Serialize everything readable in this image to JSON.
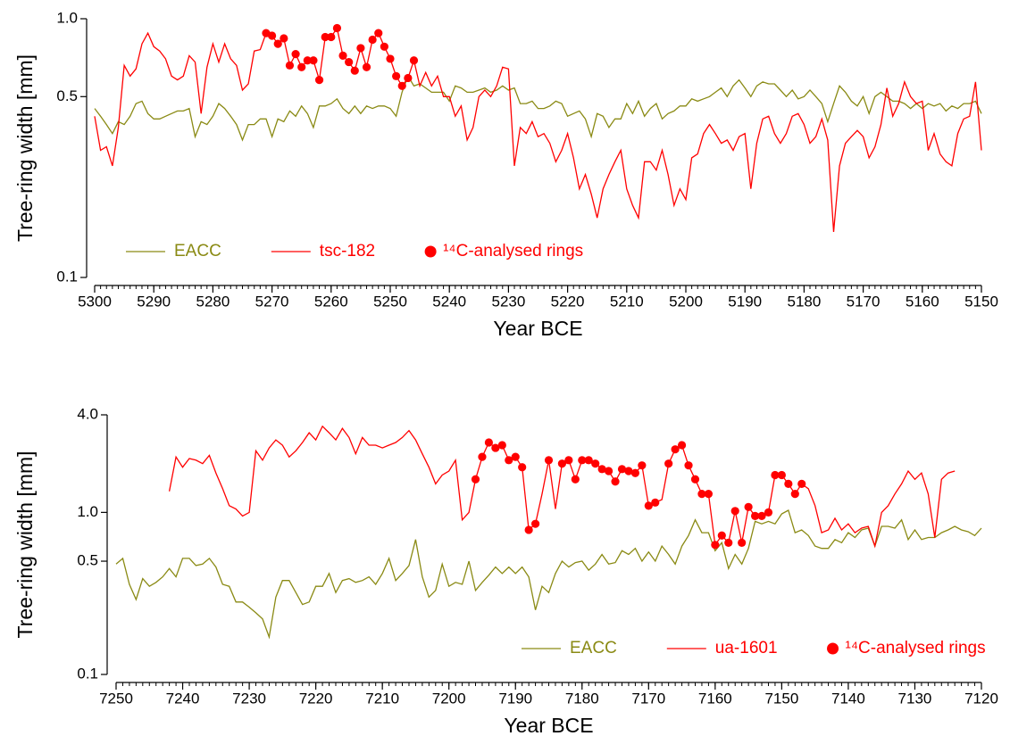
{
  "chart_data": [
    {
      "type": "line",
      "xlabel": "Year BCE",
      "ylabel": "Tree-ring width [mm]",
      "log_y": true,
      "legend": "lower left",
      "xlim": [
        5300,
        5150
      ],
      "xticks": [
        5300,
        5290,
        5280,
        5270,
        5260,
        5250,
        5240,
        5230,
        5220,
        5210,
        5200,
        5190,
        5180,
        5170,
        5160,
        5150
      ],
      "ylim": [
        0.1,
        1
      ],
      "yticks": [
        0.1,
        0.5,
        {
          "value": 1,
          "label": "1.0"
        }
      ],
      "x": [
        5300,
        5299,
        5298,
        5297,
        5296,
        5295,
        5294,
        5293,
        5292,
        5291,
        5290,
        5289,
        5288,
        5287,
        5286,
        5285,
        5284,
        5283,
        5282,
        5281,
        5280,
        5279,
        5278,
        5277,
        5276,
        5275,
        5274,
        5273,
        5272,
        5271,
        5270,
        5269,
        5268,
        5267,
        5266,
        5265,
        5264,
        5263,
        5262,
        5261,
        5260,
        5259,
        5258,
        5257,
        5256,
        5255,
        5254,
        5253,
        5252,
        5251,
        5250,
        5249,
        5248,
        5247,
        5246,
        5245,
        5244,
        5243,
        5242,
        5241,
        5240,
        5239,
        5238,
        5237,
        5236,
        5235,
        5234,
        5233,
        5232,
        5231,
        5230,
        5229,
        5228,
        5227,
        5226,
        5225,
        5224,
        5223,
        5222,
        5221,
        5220,
        5219,
        5218,
        5217,
        5216,
        5215,
        5214,
        5213,
        5212,
        5211,
        5210,
        5209,
        5208,
        5207,
        5206,
        5205,
        5204,
        5203,
        5202,
        5201,
        5200,
        5199,
        5198,
        5197,
        5196,
        5195,
        5194,
        5193,
        5192,
        5191,
        5190,
        5189,
        5188,
        5187,
        5186,
        5185,
        5184,
        5183,
        5182,
        5181,
        5180,
        5179,
        5178,
        5177,
        5176,
        5175,
        5174,
        5173,
        5172,
        5171,
        5170,
        5169,
        5168,
        5167,
        5166,
        5165,
        5164,
        5163,
        5162,
        5161,
        5160,
        5159,
        5158,
        5157,
        5156,
        5155,
        5154,
        5153,
        5152,
        5151,
        5150
      ],
      "series": [
        {
          "name": "EACC",
          "color": "#8a8a14",
          "mode": "lines",
          "values": [
            0.45,
            0.42,
            0.39,
            0.36,
            0.4,
            0.39,
            0.42,
            0.47,
            0.48,
            0.43,
            0.41,
            0.41,
            0.42,
            0.43,
            0.44,
            0.44,
            0.45,
            0.35,
            0.4,
            0.39,
            0.42,
            0.47,
            0.45,
            0.42,
            0.39,
            0.34,
            0.39,
            0.39,
            0.41,
            0.41,
            0.35,
            0.41,
            0.4,
            0.44,
            0.42,
            0.46,
            0.43,
            0.38,
            0.46,
            0.46,
            0.47,
            0.49,
            0.45,
            0.43,
            0.46,
            0.43,
            0.46,
            0.45,
            0.46,
            0.46,
            0.45,
            0.42,
            0.52,
            0.6,
            0.55,
            0.56,
            0.54,
            0.52,
            0.52,
            0.52,
            0.48,
            0.55,
            0.54,
            0.52,
            0.52,
            0.53,
            0.54,
            0.52,
            0.53,
            0.55,
            0.53,
            0.54,
            0.47,
            0.47,
            0.48,
            0.45,
            0.45,
            0.46,
            0.48,
            0.47,
            0.42,
            0.43,
            0.44,
            0.41,
            0.35,
            0.43,
            0.42,
            0.38,
            0.41,
            0.41,
            0.47,
            0.43,
            0.48,
            0.42,
            0.45,
            0.47,
            0.41,
            0.43,
            0.44,
            0.46,
            0.46,
            0.49,
            0.48,
            0.49,
            0.5,
            0.52,
            0.54,
            0.5,
            0.55,
            0.58,
            0.54,
            0.5,
            0.55,
            0.57,
            0.56,
            0.56,
            0.53,
            0.5,
            0.53,
            0.49,
            0.5,
            0.53,
            0.5,
            0.47,
            0.4,
            0.47,
            0.55,
            0.52,
            0.48,
            0.46,
            0.5,
            0.43,
            0.5,
            0.52,
            0.5,
            0.48,
            0.48,
            0.47,
            0.45,
            0.47,
            0.45,
            0.47,
            0.46,
            0.47,
            0.44,
            0.46,
            0.45,
            0.47,
            0.47,
            0.48,
            0.43
          ]
        },
        {
          "name": "tsc-182",
          "color": "#ff0000",
          "mode": "lines",
          "values": [
            0.42,
            0.31,
            0.32,
            0.27,
            0.38,
            0.66,
            0.6,
            0.64,
            0.8,
            0.88,
            0.78,
            0.75,
            0.7,
            0.6,
            0.58,
            0.6,
            0.72,
            0.68,
            0.43,
            0.65,
            0.8,
            0.68,
            0.8,
            0.7,
            0.66,
            0.53,
            0.56,
            0.75,
            0.76,
            0.88,
            0.86,
            0.8,
            0.84,
            0.66,
            0.73,
            0.65,
            0.69,
            0.69,
            0.58,
            0.85,
            0.85,
            0.92,
            0.72,
            0.68,
            0.63,
            0.77,
            0.65,
            0.83,
            0.88,
            0.78,
            0.7,
            0.6,
            0.55,
            0.59,
            0.69,
            0.55,
            0.62,
            0.55,
            0.6,
            0.5,
            0.5,
            0.42,
            0.46,
            0.34,
            0.38,
            0.5,
            0.53,
            0.5,
            0.55,
            0.65,
            0.64,
            0.27,
            0.38,
            0.36,
            0.4,
            0.35,
            0.36,
            0.33,
            0.28,
            0.31,
            0.36,
            0.29,
            0.22,
            0.25,
            0.21,
            0.17,
            0.22,
            0.25,
            0.28,
            0.31,
            0.22,
            0.19,
            0.17,
            0.28,
            0.28,
            0.26,
            0.31,
            0.25,
            0.19,
            0.22,
            0.2,
            0.29,
            0.3,
            0.36,
            0.39,
            0.36,
            0.33,
            0.34,
            0.31,
            0.35,
            0.36,
            0.22,
            0.33,
            0.41,
            0.42,
            0.36,
            0.33,
            0.36,
            0.42,
            0.43,
            0.39,
            0.33,
            0.35,
            0.41,
            0.34,
            0.15,
            0.27,
            0.33,
            0.35,
            0.37,
            0.35,
            0.29,
            0.32,
            0.39,
            0.54,
            0.42,
            0.47,
            0.57,
            0.5,
            0.47,
            0.48,
            0.31,
            0.36,
            0.3,
            0.28,
            0.27,
            0.36,
            0.41,
            0.42,
            0.57,
            0.31
          ]
        },
        {
          "name": "¹⁴C-analysed rings",
          "color": "#ff0000",
          "mode": "markers",
          "x": [
            5271,
            5270,
            5269,
            5268,
            5267,
            5266,
            5265,
            5264,
            5263,
            5262,
            5261,
            5260,
            5259,
            5258,
            5257,
            5256,
            5255,
            5254,
            5253,
            5252,
            5251,
            5250,
            5249,
            5248,
            5247,
            5246
          ],
          "values": [
            0.88,
            0.86,
            0.8,
            0.84,
            0.66,
            0.73,
            0.65,
            0.69,
            0.69,
            0.58,
            0.85,
            0.85,
            0.92,
            0.72,
            0.68,
            0.63,
            0.77,
            0.65,
            0.83,
            0.88,
            0.78,
            0.7,
            0.6,
            0.55,
            0.59,
            0.69
          ]
        }
      ]
    },
    {
      "type": "line",
      "xlabel": "Year BCE",
      "ylabel": "Tree-ring width [mm]",
      "log_y": true,
      "legend": "lower right",
      "xlim": [
        7250,
        7120
      ],
      "xticks": [
        7250,
        7240,
        7230,
        7220,
        7210,
        7200,
        7190,
        7180,
        7170,
        7160,
        7150,
        7140,
        7130,
        7120
      ],
      "ylim": [
        0.1,
        4
      ],
      "yticks": [
        0.1,
        0.5,
        {
          "value": 1,
          "label": "1.0"
        },
        {
          "value": 4,
          "label": "4.0"
        }
      ],
      "x": [
        7250,
        7249,
        7248,
        7247,
        7246,
        7245,
        7244,
        7243,
        7242,
        7241,
        7240,
        7239,
        7238,
        7237,
        7236,
        7235,
        7234,
        7233,
        7232,
        7231,
        7230,
        7229,
        7228,
        7227,
        7226,
        7225,
        7224,
        7223,
        7222,
        7221,
        7220,
        7219,
        7218,
        7217,
        7216,
        7215,
        7214,
        7213,
        7212,
        7211,
        7210,
        7209,
        7208,
        7207,
        7206,
        7205,
        7204,
        7203,
        7202,
        7201,
        7200,
        7199,
        7198,
        7197,
        7196,
        7195,
        7194,
        7193,
        7192,
        7191,
        7190,
        7189,
        7188,
        7187,
        7186,
        7185,
        7184,
        7183,
        7182,
        7181,
        7180,
        7179,
        7178,
        7177,
        7176,
        7175,
        7174,
        7173,
        7172,
        7171,
        7170,
        7169,
        7168,
        7167,
        7166,
        7165,
        7164,
        7163,
        7162,
        7161,
        7160,
        7159,
        7158,
        7157,
        7156,
        7155,
        7154,
        7153,
        7152,
        7151,
        7150,
        7149,
        7148,
        7147,
        7146,
        7145,
        7144,
        7143,
        7142,
        7141,
        7140,
        7139,
        7138,
        7137,
        7136,
        7135,
        7134,
        7133,
        7132,
        7131,
        7130,
        7129,
        7128,
        7127,
        7126,
        7125,
        7124,
        7123,
        7122,
        7121,
        7120
      ],
      "series": [
        {
          "name": "EACC",
          "color": "#8a8a14",
          "mode": "lines",
          "values": [
            0.48,
            0.52,
            0.36,
            0.29,
            0.39,
            0.35,
            0.37,
            0.4,
            0.45,
            0.4,
            0.52,
            0.52,
            0.47,
            0.48,
            0.52,
            0.46,
            0.36,
            0.35,
            0.28,
            0.28,
            0.26,
            0.24,
            0.22,
            0.17,
            0.3,
            0.38,
            0.38,
            0.32,
            0.27,
            0.28,
            0.35,
            0.35,
            0.42,
            0.32,
            0.38,
            0.39,
            0.37,
            0.38,
            0.4,
            0.36,
            0.42,
            0.52,
            0.38,
            0.42,
            0.47,
            0.68,
            0.4,
            0.3,
            0.33,
            0.48,
            0.35,
            0.37,
            0.36,
            0.5,
            0.33,
            0.37,
            0.41,
            0.46,
            0.42,
            0.46,
            0.42,
            0.46,
            0.4,
            0.25,
            0.35,
            0.32,
            0.42,
            0.5,
            0.46,
            0.49,
            0.5,
            0.44,
            0.48,
            0.55,
            0.48,
            0.49,
            0.58,
            0.55,
            0.6,
            0.5,
            0.57,
            0.5,
            0.62,
            0.55,
            0.48,
            0.62,
            0.72,
            0.9,
            0.75,
            0.75,
            0.58,
            0.65,
            0.45,
            0.55,
            0.48,
            0.6,
            0.88,
            0.85,
            0.88,
            0.85,
            0.98,
            1.03,
            0.75,
            0.78,
            0.72,
            0.62,
            0.6,
            0.6,
            0.68,
            0.65,
            0.75,
            0.7,
            0.78,
            0.8,
            0.62,
            0.82,
            0.82,
            0.8,
            0.9,
            0.68,
            0.78,
            0.68,
            0.7,
            0.7,
            0.75,
            0.78,
            0.82,
            0.78,
            0.76,
            0.72,
            0.8
          ]
        },
        {
          "name": "ua-1601",
          "color": "#ff0000",
          "mode": "lines",
          "values": [
            null,
            null,
            null,
            null,
            null,
            null,
            null,
            null,
            1.35,
            2.2,
            1.9,
            2.15,
            2.1,
            2.0,
            2.25,
            1.75,
            1.4,
            1.1,
            1.05,
            0.95,
            1.0,
            2.4,
            2.1,
            2.5,
            2.8,
            2.6,
            2.2,
            2.4,
            2.7,
            3.1,
            2.8,
            3.4,
            3.1,
            2.8,
            3.3,
            2.9,
            2.3,
            2.9,
            2.6,
            2.6,
            2.5,
            2.6,
            2.7,
            2.9,
            3.2,
            2.8,
            2.3,
            1.9,
            1.5,
            1.7,
            1.8,
            2.1,
            0.9,
            1.0,
            1.6,
            2.2,
            2.7,
            2.5,
            2.6,
            2.1,
            2.2,
            1.9,
            0.78,
            0.85,
            1.3,
            2.1,
            1.05,
            2.0,
            2.1,
            1.6,
            2.1,
            2.1,
            2.0,
            1.85,
            1.8,
            1.55,
            1.85,
            1.8,
            1.75,
            1.95,
            1.1,
            1.15,
            1.2,
            2.0,
            2.45,
            2.6,
            1.95,
            1.6,
            1.3,
            1.3,
            0.63,
            0.72,
            0.65,
            1.02,
            0.65,
            1.08,
            0.95,
            0.95,
            1.0,
            1.7,
            1.7,
            1.5,
            1.3,
            1.5,
            1.4,
            1.1,
            0.75,
            0.78,
            0.92,
            0.78,
            0.85,
            0.75,
            0.8,
            0.82,
            0.62,
            1.0,
            1.1,
            1.3,
            1.5,
            1.8,
            1.6,
            1.75,
            1.3,
            0.7,
            1.6,
            1.75,
            1.8,
            null,
            null,
            null,
            null
          ]
        },
        {
          "name": "¹⁴C-analysed rings",
          "color": "#ff0000",
          "mode": "markers",
          "x": [
            7196,
            7195,
            7194,
            7193,
            7192,
            7191,
            7190,
            7189,
            7188,
            7187,
            7185,
            7183,
            7182,
            7181,
            7180,
            7179,
            7178,
            7177,
            7176,
            7175,
            7174,
            7173,
            7172,
            7171,
            7170,
            7169,
            7167,
            7166,
            7165,
            7164,
            7163,
            7162,
            7161,
            7160,
            7159,
            7158,
            7157,
            7156,
            7155,
            7154,
            7153,
            7152,
            7151,
            7150,
            7149,
            7148,
            7147
          ],
          "values": [
            1.6,
            2.2,
            2.7,
            2.5,
            2.6,
            2.1,
            2.2,
            1.9,
            0.78,
            0.85,
            2.1,
            2.0,
            2.1,
            1.6,
            2.1,
            2.1,
            2.0,
            1.85,
            1.8,
            1.55,
            1.85,
            1.8,
            1.75,
            1.95,
            1.1,
            1.15,
            2.0,
            2.45,
            2.6,
            1.95,
            1.6,
            1.3,
            1.3,
            0.63,
            0.72,
            0.65,
            1.02,
            0.65,
            1.08,
            0.95,
            0.95,
            1.0,
            1.7,
            1.7,
            1.5,
            1.3,
            1.5
          ]
        }
      ]
    }
  ]
}
